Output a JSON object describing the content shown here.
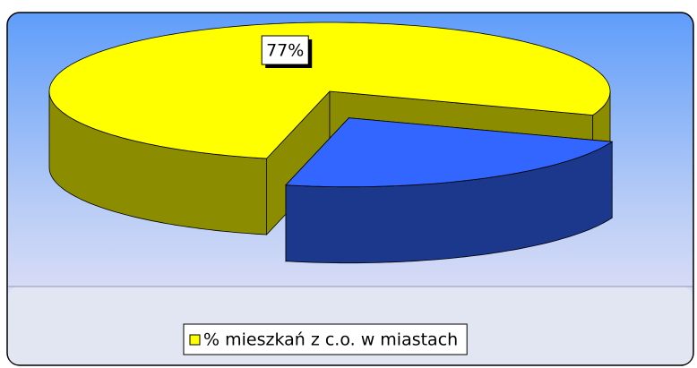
{
  "chart_data": {
    "type": "pie",
    "categories": [
      "% mieszkań z c.o. w miastach",
      null
    ],
    "values": [
      77,
      23
    ],
    "value_labels": [
      "77%",
      null
    ],
    "colors": [
      "#ffff00",
      "#3366ff"
    ],
    "legend": "bottom"
  }
}
